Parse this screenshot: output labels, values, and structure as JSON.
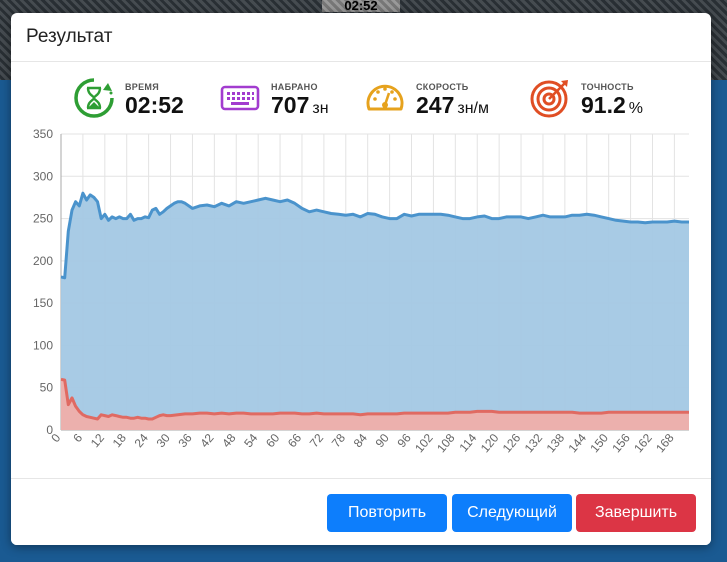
{
  "background": {
    "timer": "02:52"
  },
  "modal": {
    "title": "Результат",
    "stats": [
      {
        "icon": "hourglass-timer-icon",
        "label": "ВРЕМЯ",
        "value": "02:52",
        "unit": "",
        "color": "#2e9e34"
      },
      {
        "icon": "keyboard-icon",
        "label": "НАБРАНО",
        "value": "707",
        "unit": "зн",
        "color": "#a23ccf"
      },
      {
        "icon": "speedometer-icon",
        "label": "СКОРОСТЬ",
        "value": "247",
        "unit": "зн/м",
        "color": "#e6a21d"
      },
      {
        "icon": "target-icon",
        "label": "ТОЧНОСТЬ",
        "value": "91.2",
        "unit": "%",
        "color": "#e04e24"
      }
    ],
    "buttons": {
      "repeat": "Повторить",
      "next": "Следующий",
      "finish": "Завершить"
    }
  },
  "chart_data": {
    "type": "area",
    "ylim": [
      0,
      350
    ],
    "yticks": [
      0,
      50,
      100,
      150,
      200,
      250,
      300,
      350
    ],
    "xlim": [
      0,
      172
    ],
    "xticks": [
      0,
      6,
      12,
      18,
      24,
      30,
      36,
      42,
      48,
      54,
      60,
      66,
      72,
      78,
      84,
      90,
      96,
      102,
      108,
      114,
      120,
      126,
      132,
      138,
      144,
      150,
      156,
      162,
      168
    ],
    "grid": true,
    "series": [
      {
        "color": "#4a93cc",
        "fill": "#a3c8e4",
        "x": [
          0,
          1,
          2,
          3,
          4,
          5,
          6,
          7,
          8,
          9,
          10,
          11,
          12,
          13,
          14,
          15,
          16,
          17,
          18,
          19,
          20,
          21,
          22,
          23,
          24,
          25,
          26,
          27,
          28,
          29,
          30,
          31,
          32,
          33,
          34,
          36,
          38,
          40,
          42,
          44,
          46,
          48,
          50,
          52,
          54,
          56,
          58,
          60,
          62,
          64,
          66,
          68,
          70,
          72,
          74,
          76,
          78,
          80,
          82,
          84,
          86,
          88,
          90,
          92,
          94,
          96,
          98,
          100,
          102,
          104,
          106,
          108,
          110,
          112,
          114,
          116,
          118,
          120,
          122,
          124,
          126,
          128,
          130,
          132,
          134,
          136,
          138,
          140,
          142,
          144,
          146,
          148,
          150,
          152,
          154,
          156,
          158,
          160,
          162,
          164,
          166,
          168,
          170,
          172
        ],
        "values": [
          181,
          180,
          235,
          260,
          270,
          265,
          280,
          272,
          278,
          275,
          270,
          250,
          255,
          248,
          252,
          250,
          252,
          250,
          250,
          255,
          248,
          250,
          250,
          252,
          251,
          260,
          262,
          255,
          258,
          262,
          265,
          268,
          270,
          270,
          268,
          262,
          265,
          266,
          264,
          268,
          265,
          270,
          268,
          270,
          272,
          274,
          272,
          270,
          272,
          268,
          262,
          258,
          260,
          258,
          256,
          255,
          254,
          255,
          252,
          256,
          255,
          252,
          250,
          250,
          255,
          253,
          255,
          255,
          255,
          255,
          254,
          252,
          250,
          250,
          252,
          253,
          250,
          250,
          252,
          252,
          252,
          250,
          252,
          254,
          252,
          252,
          252,
          254,
          254,
          255,
          254,
          252,
          250,
          248,
          247,
          246,
          246,
          245,
          246,
          246,
          246,
          247,
          246,
          246
        ]
      },
      {
        "color": "#e06a62",
        "fill": "#efaeaa",
        "x": [
          0,
          1,
          2,
          3,
          4,
          5,
          6,
          7,
          8,
          9,
          10,
          11,
          12,
          13,
          14,
          15,
          16,
          17,
          18,
          19,
          20,
          21,
          22,
          23,
          24,
          25,
          26,
          27,
          28,
          29,
          30,
          32,
          34,
          36,
          38,
          40,
          42,
          44,
          46,
          48,
          50,
          52,
          54,
          56,
          58,
          60,
          62,
          64,
          66,
          68,
          70,
          72,
          74,
          76,
          78,
          80,
          82,
          84,
          86,
          88,
          90,
          92,
          94,
          96,
          98,
          100,
          102,
          104,
          106,
          108,
          110,
          112,
          114,
          116,
          118,
          120,
          122,
          124,
          126,
          128,
          130,
          132,
          134,
          136,
          138,
          140,
          142,
          144,
          146,
          148,
          150,
          152,
          154,
          156,
          158,
          160,
          162,
          164,
          166,
          168,
          170,
          172
        ],
        "values": [
          60,
          59,
          30,
          38,
          28,
          22,
          18,
          16,
          15,
          14,
          13,
          18,
          17,
          16,
          18,
          17,
          16,
          15,
          15,
          14,
          14,
          15,
          14,
          14,
          13,
          13,
          15,
          17,
          18,
          17,
          17,
          18,
          19,
          19,
          20,
          20,
          19,
          20,
          19,
          20,
          20,
          19,
          19,
          19,
          19,
          20,
          20,
          20,
          19,
          19,
          20,
          19,
          19,
          19,
          19,
          19,
          18,
          19,
          19,
          19,
          19,
          19,
          20,
          20,
          20,
          20,
          20,
          20,
          20,
          21,
          21,
          21,
          22,
          22,
          22,
          21,
          21,
          21,
          21,
          21,
          21,
          21,
          21,
          21,
          21,
          21,
          20,
          20,
          20,
          20,
          21,
          21,
          21,
          21,
          21,
          21,
          21,
          21,
          21,
          21,
          21,
          21
        ]
      }
    ]
  }
}
